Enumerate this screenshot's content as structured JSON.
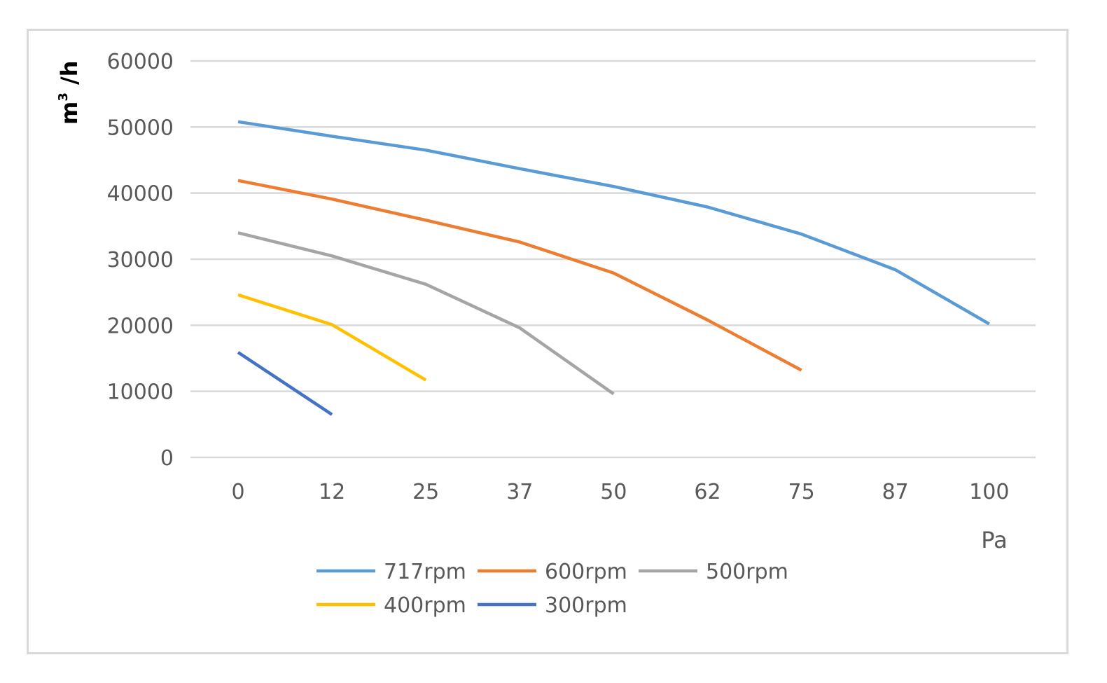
{
  "chart_data": {
    "type": "line",
    "title": "",
    "xlabel": "Pa",
    "ylabel_base": "m",
    "ylabel_sup": "3",
    "ylabel_rest": " /h",
    "categories": [
      "0",
      "12",
      "25",
      "37",
      "50",
      "62",
      "75",
      "87",
      "100"
    ],
    "ylim": [
      0,
      60000
    ],
    "yticks": [
      "0",
      "10000",
      "20000",
      "30000",
      "40000",
      "50000",
      "60000"
    ],
    "grid": true,
    "legend_position": "bottom",
    "series": [
      {
        "name": "717rpm",
        "color": "#5b9bd5",
        "values": [
          50800,
          48600,
          46500,
          43700,
          41000,
          37900,
          33800,
          28400,
          20200
        ]
      },
      {
        "name": "600rpm",
        "color": "#ed7d31",
        "values": [
          41900,
          39100,
          35900,
          32600,
          27900,
          20800,
          13200,
          null,
          null
        ]
      },
      {
        "name": "500rpm",
        "color": "#a5a5a5",
        "values": [
          34000,
          30500,
          26200,
          19600,
          9600,
          null,
          null,
          null,
          null
        ]
      },
      {
        "name": "400rpm",
        "color": "#ffc000",
        "values": [
          24600,
          20100,
          11700,
          null,
          null,
          null,
          null,
          null,
          null
        ]
      },
      {
        "name": "300rpm",
        "color": "#4472c4",
        "values": [
          15900,
          6500,
          null,
          null,
          null,
          null,
          null,
          null,
          null
        ]
      }
    ]
  }
}
